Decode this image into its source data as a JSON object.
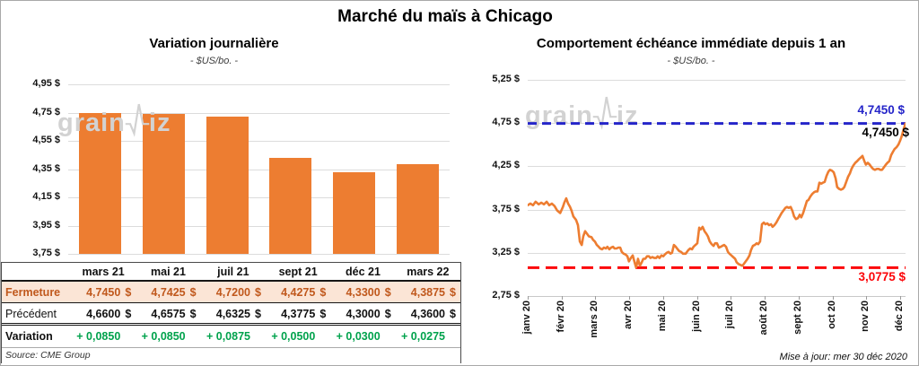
{
  "page": {
    "title": "Marché du maïs à Chicago",
    "updated": "Mise à jour: mer 30 déc 2020",
    "watermark": {
      "prefix": "grain",
      "suffix": "iz"
    }
  },
  "table": {
    "columns": [
      "mars 21",
      "mai 21",
      "juil 21",
      "sept 21",
      "déc 21",
      "mars 22"
    ],
    "rows": [
      {
        "label": "Fermeture",
        "style": "fermeture",
        "suffix": "$",
        "values": [
          "4,7450",
          "4,7425",
          "4,7200",
          "4,4275",
          "4,3300",
          "4,3875"
        ]
      },
      {
        "label": "Précédent",
        "style": "precedent",
        "suffix": "$",
        "values": [
          "4,6600",
          "4,6575",
          "4,6325",
          "4,3775",
          "4,3000",
          "4,3600"
        ]
      },
      {
        "label": "Variation",
        "style": "variation",
        "suffix": "",
        "values": [
          "+ 0,0850",
          "+ 0,0850",
          "+ 0,0875",
          "+ 0,0500",
          "+ 0,0300",
          "+ 0,0275"
        ]
      }
    ],
    "source": "Source: CME Group"
  },
  "colors": {
    "orange": "#ED7D31",
    "blue_ref": "#2525C9",
    "red_ref": "#FC0307",
    "green": "#00A24C",
    "fermeture_bg": "#FBE5D6",
    "fermeture_text": "#C0581C"
  },
  "chart_data": [
    {
      "type": "bar",
      "title": "Variation journalière",
      "subtitle": "- $US/bo. -",
      "categories": [
        "mars 21",
        "mai 21",
        "juil 21",
        "sept 21",
        "déc 21",
        "mars 22"
      ],
      "values": [
        4.745,
        4.7425,
        4.72,
        4.4275,
        4.33,
        4.3875
      ],
      "ylim": [
        3.75,
        4.95
      ],
      "grid": true,
      "y_ticks": [
        {
          "v": 4.95,
          "label": "4,95 $"
        },
        {
          "v": 4.75,
          "label": "4,75 $"
        },
        {
          "v": 4.55,
          "label": "4,55 $"
        },
        {
          "v": 4.35,
          "label": "4,35 $"
        },
        {
          "v": 4.15,
          "label": "4,15 $"
        },
        {
          "v": 3.95,
          "label": "3,95 $"
        },
        {
          "v": 3.75,
          "label": "3,75 $"
        }
      ]
    },
    {
      "type": "line",
      "title": "Comportement échéance immédiate depuis 1 an",
      "subtitle": "- $US/bo. -",
      "x_ticks": [
        "janv 20",
        "févr 20",
        "mars 20",
        "avr 20",
        "mai 20",
        "juin 20",
        "juil 20",
        "août 20",
        "sept 20",
        "oct 20",
        "nov 20",
        "déc 20"
      ],
      "ylim": [
        2.75,
        5.25
      ],
      "grid": true,
      "y_ticks": [
        {
          "v": 5.25,
          "label": "5,25 $"
        },
        {
          "v": 4.75,
          "label": "4,75 $"
        },
        {
          "v": 4.25,
          "label": "4,25 $"
        },
        {
          "v": 3.75,
          "label": "3,75 $"
        },
        {
          "v": 3.25,
          "label": "3,25 $"
        },
        {
          "v": 2.75,
          "label": "2,75 $"
        }
      ],
      "ref_lines": [
        {
          "value": 4.745,
          "label": "4,7450 $",
          "color": "#2525C9"
        },
        {
          "value": 3.0775,
          "label": "3,0775 $",
          "color": "#FC0307"
        }
      ],
      "last_label": {
        "value": 4.745,
        "label": "4,7450 $",
        "color": "#000000"
      },
      "series": [
        {
          "name": "échéance immédiate",
          "points": [
            [
              0.0,
              3.8
            ],
            [
              0.007,
              3.82
            ],
            [
              0.014,
              3.8
            ],
            [
              0.021,
              3.84
            ],
            [
              0.029,
              3.81
            ],
            [
              0.036,
              3.83
            ],
            [
              0.043,
              3.81
            ],
            [
              0.05,
              3.84
            ],
            [
              0.057,
              3.8
            ],
            [
              0.064,
              3.82
            ],
            [
              0.071,
              3.79
            ],
            [
              0.078,
              3.74
            ],
            [
              0.086,
              3.71
            ],
            [
              0.093,
              3.78
            ],
            [
              0.097,
              3.83
            ],
            [
              0.102,
              3.88
            ],
            [
              0.107,
              3.82
            ],
            [
              0.112,
              3.78
            ],
            [
              0.116,
              3.74
            ],
            [
              0.121,
              3.67
            ],
            [
              0.128,
              3.63
            ],
            [
              0.133,
              3.57
            ],
            [
              0.138,
              3.38
            ],
            [
              0.143,
              3.34
            ],
            [
              0.147,
              3.44
            ],
            [
              0.152,
              3.5
            ],
            [
              0.157,
              3.47
            ],
            [
              0.162,
              3.44
            ],
            [
              0.169,
              3.43
            ],
            [
              0.173,
              3.4
            ],
            [
              0.178,
              3.38
            ],
            [
              0.183,
              3.34
            ],
            [
              0.188,
              3.32
            ],
            [
              0.192,
              3.3
            ],
            [
              0.197,
              3.29
            ],
            [
              0.202,
              3.31
            ],
            [
              0.207,
              3.3
            ],
            [
              0.211,
              3.32
            ],
            [
              0.216,
              3.29
            ],
            [
              0.221,
              3.31
            ],
            [
              0.226,
              3.32
            ],
            [
              0.23,
              3.3
            ],
            [
              0.235,
              3.3
            ],
            [
              0.24,
              3.31
            ],
            [
              0.245,
              3.31
            ],
            [
              0.249,
              3.26
            ],
            [
              0.254,
              3.24
            ],
            [
              0.259,
              3.23
            ],
            [
              0.264,
              3.21
            ],
            [
              0.268,
              3.15
            ],
            [
              0.273,
              3.19
            ],
            [
              0.278,
              3.22
            ],
            [
              0.283,
              3.14
            ],
            [
              0.287,
              3.08
            ],
            [
              0.292,
              3.18
            ],
            [
              0.297,
              3.1
            ],
            [
              0.302,
              3.14
            ],
            [
              0.306,
              3.18
            ],
            [
              0.311,
              3.18
            ],
            [
              0.316,
              3.21
            ],
            [
              0.321,
              3.21
            ],
            [
              0.325,
              3.19
            ],
            [
              0.33,
              3.2
            ],
            [
              0.335,
              3.19
            ],
            [
              0.34,
              3.19
            ],
            [
              0.344,
              3.21
            ],
            [
              0.349,
              3.19
            ],
            [
              0.354,
              3.22
            ],
            [
              0.359,
              3.21
            ],
            [
              0.363,
              3.23
            ],
            [
              0.368,
              3.25
            ],
            [
              0.373,
              3.26
            ],
            [
              0.378,
              3.24
            ],
            [
              0.382,
              3.25
            ],
            [
              0.387,
              3.34
            ],
            [
              0.392,
              3.32
            ],
            [
              0.397,
              3.29
            ],
            [
              0.401,
              3.27
            ],
            [
              0.406,
              3.26
            ],
            [
              0.411,
              3.24
            ],
            [
              0.418,
              3.24
            ],
            [
              0.425,
              3.28
            ],
            [
              0.43,
              3.3
            ],
            [
              0.435,
              3.29
            ],
            [
              0.439,
              3.32
            ],
            [
              0.444,
              3.34
            ],
            [
              0.449,
              3.36
            ],
            [
              0.454,
              3.54
            ],
            [
              0.458,
              3.52
            ],
            [
              0.463,
              3.55
            ],
            [
              0.468,
              3.5
            ],
            [
              0.473,
              3.47
            ],
            [
              0.477,
              3.44
            ],
            [
              0.482,
              3.38
            ],
            [
              0.487,
              3.35
            ],
            [
              0.492,
              3.33
            ],
            [
              0.496,
              3.36
            ],
            [
              0.501,
              3.36
            ],
            [
              0.506,
              3.31
            ],
            [
              0.511,
              3.32
            ],
            [
              0.515,
              3.33
            ],
            [
              0.52,
              3.34
            ],
            [
              0.525,
              3.32
            ],
            [
              0.53,
              3.26
            ],
            [
              0.534,
              3.24
            ],
            [
              0.539,
              3.22
            ],
            [
              0.544,
              3.2
            ],
            [
              0.549,
              3.18
            ],
            [
              0.553,
              3.14
            ],
            [
              0.558,
              3.12
            ],
            [
              0.563,
              3.11
            ],
            [
              0.568,
              3.1
            ],
            [
              0.572,
              3.12
            ],
            [
              0.577,
              3.15
            ],
            [
              0.582,
              3.18
            ],
            [
              0.587,
              3.22
            ],
            [
              0.591,
              3.28
            ],
            [
              0.596,
              3.33
            ],
            [
              0.601,
              3.34
            ],
            [
              0.606,
              3.36
            ],
            [
              0.61,
              3.35
            ],
            [
              0.615,
              3.38
            ],
            [
              0.62,
              3.58
            ],
            [
              0.625,
              3.6
            ],
            [
              0.629,
              3.58
            ],
            [
              0.634,
              3.59
            ],
            [
              0.639,
              3.57
            ],
            [
              0.644,
              3.58
            ],
            [
              0.648,
              3.55
            ],
            [
              0.653,
              3.57
            ],
            [
              0.658,
              3.6
            ],
            [
              0.663,
              3.64
            ],
            [
              0.667,
              3.67
            ],
            [
              0.672,
              3.71
            ],
            [
              0.677,
              3.74
            ],
            [
              0.682,
              3.77
            ],
            [
              0.686,
              3.78
            ],
            [
              0.691,
              3.77
            ],
            [
              0.696,
              3.78
            ],
            [
              0.701,
              3.73
            ],
            [
              0.705,
              3.67
            ],
            [
              0.71,
              3.64
            ],
            [
              0.715,
              3.65
            ],
            [
              0.72,
              3.69
            ],
            [
              0.724,
              3.66
            ],
            [
              0.729,
              3.71
            ],
            [
              0.734,
              3.78
            ],
            [
              0.739,
              3.85
            ],
            [
              0.743,
              3.86
            ],
            [
              0.748,
              3.9
            ],
            [
              0.753,
              3.93
            ],
            [
              0.758,
              3.95
            ],
            [
              0.762,
              3.96
            ],
            [
              0.767,
              3.96
            ],
            [
              0.772,
              4.06
            ],
            [
              0.777,
              4.05
            ],
            [
              0.781,
              4.06
            ],
            [
              0.786,
              4.07
            ],
            [
              0.791,
              4.14
            ],
            [
              0.796,
              4.19
            ],
            [
              0.8,
              4.21
            ],
            [
              0.805,
              4.2
            ],
            [
              0.81,
              4.18
            ],
            [
              0.815,
              4.11
            ],
            [
              0.819,
              4.01
            ],
            [
              0.824,
              3.99
            ],
            [
              0.829,
              3.98
            ],
            [
              0.834,
              3.99
            ],
            [
              0.838,
              4.01
            ],
            [
              0.843,
              4.07
            ],
            [
              0.848,
              4.13
            ],
            [
              0.853,
              4.17
            ],
            [
              0.857,
              4.22
            ],
            [
              0.862,
              4.26
            ],
            [
              0.867,
              4.29
            ],
            [
              0.872,
              4.31
            ],
            [
              0.876,
              4.33
            ],
            [
              0.881,
              4.35
            ],
            [
              0.886,
              4.37
            ],
            [
              0.891,
              4.31
            ],
            [
              0.895,
              4.27
            ],
            [
              0.9,
              4.29
            ],
            [
              0.905,
              4.27
            ],
            [
              0.91,
              4.24
            ],
            [
              0.914,
              4.22
            ],
            [
              0.919,
              4.21
            ],
            [
              0.924,
              4.22
            ],
            [
              0.929,
              4.22
            ],
            [
              0.933,
              4.21
            ],
            [
              0.938,
              4.21
            ],
            [
              0.943,
              4.24
            ],
            [
              0.948,
              4.27
            ],
            [
              0.952,
              4.29
            ],
            [
              0.957,
              4.31
            ],
            [
              0.962,
              4.38
            ],
            [
              0.967,
              4.42
            ],
            [
              0.971,
              4.45
            ],
            [
              0.976,
              4.47
            ],
            [
              0.981,
              4.5
            ],
            [
              0.986,
              4.55
            ],
            [
              0.99,
              4.6
            ],
            [
              0.995,
              4.68
            ],
            [
              1.0,
              4.745
            ]
          ]
        }
      ]
    }
  ]
}
